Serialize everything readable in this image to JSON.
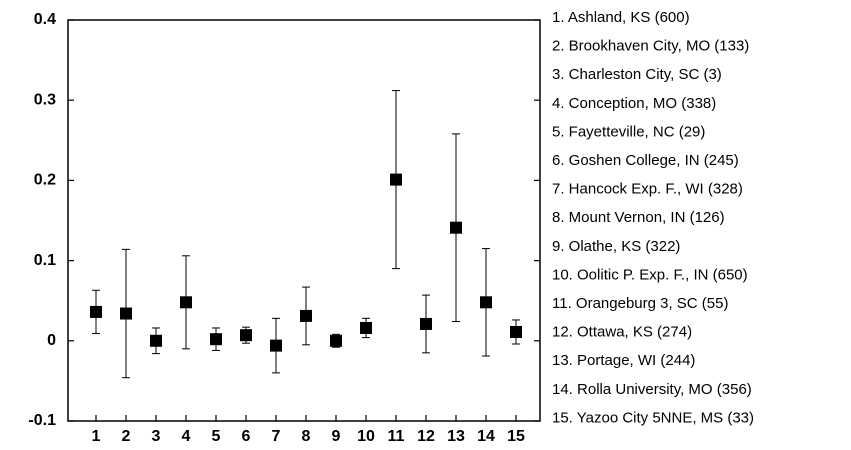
{
  "chart_data": {
    "type": "errorbar",
    "categories": [
      "1",
      "2",
      "3",
      "4",
      "5",
      "6",
      "7",
      "8",
      "9",
      "10",
      "11",
      "12",
      "13",
      "14",
      "15"
    ],
    "values": [
      0.036,
      0.034,
      0.0,
      0.048,
      0.002,
      0.007,
      -0.006,
      0.031,
      0.0,
      0.016,
      0.201,
      0.021,
      0.141,
      0.048,
      0.011
    ],
    "errors": [
      0.027,
      0.08,
      0.016,
      0.058,
      0.014,
      0.01,
      0.034,
      0.036,
      0.008,
      0.012,
      0.111,
      0.036,
      0.117,
      0.067,
      0.015
    ],
    "color": "#000000",
    "ylim": [
      -0.1,
      0.4
    ],
    "yticks": [
      -0.1,
      0,
      0.1,
      0.2,
      0.3,
      0.4
    ],
    "legend_entries": [
      "1. Ashland, KS (600)",
      "2. Brookhaven City, MO (133)",
      "3. Charleston City, SC (3)",
      "4. Conception, MO (338)",
      "5. Fayetteville, NC (29)",
      "6. Goshen College, IN (245)",
      "7. Hancock Exp. F., WI (328)",
      "8. Mount Vernon, IN (126)",
      "9. Olathe, KS (322)",
      "10. Oolitic P. Exp. F., IN (650)",
      "11. Orangeburg 3, SC (55)",
      "12. Ottawa, KS (274)",
      "13. Portage, WI (244)",
      "14. Rolla University, MO (356)",
      "15. Yazoo City 5NNE, MS (33)"
    ]
  }
}
